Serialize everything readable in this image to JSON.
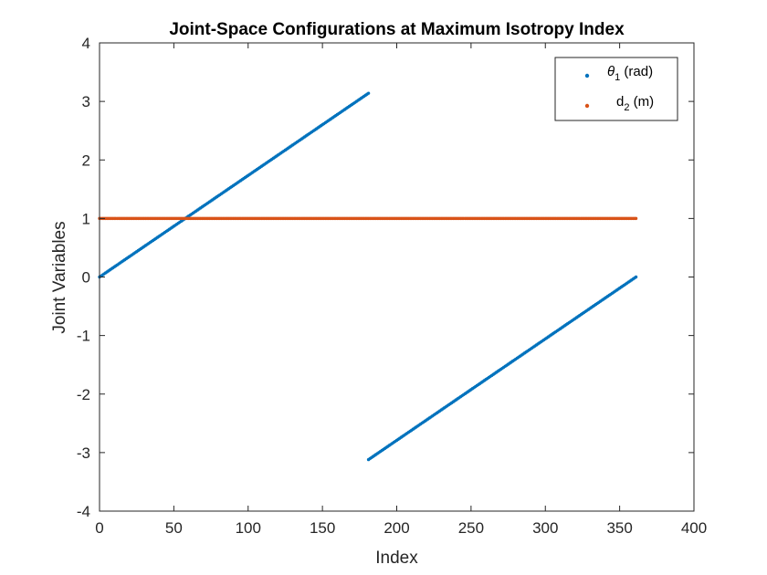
{
  "chart_data": {
    "type": "scatter",
    "title": "Joint-Space Configurations at Maximum Isotropy Index",
    "xlabel": "Index",
    "ylabel": "Joint Variables",
    "xlim": [
      0,
      400
    ],
    "ylim": [
      -4,
      4
    ],
    "xticks": [
      "0",
      "50",
      "100",
      "150",
      "200",
      "250",
      "300",
      "350",
      "400"
    ],
    "yticks": [
      "-4",
      "-3",
      "-2",
      "-1",
      "0",
      "1",
      "2",
      "3",
      "4"
    ],
    "grid": false,
    "legend_position": "top-right",
    "legend": {
      "theta_symbol": "θ",
      "theta_sub": "1",
      "theta_unit": " (rad)",
      "d_symbol": "d",
      "d_sub": "2",
      "d_unit": " (m)"
    },
    "series": [
      {
        "name": "θ1 (rad)",
        "color": "#0072BD",
        "segments": [
          {
            "x": [
              0,
              181
            ],
            "y": [
              0,
              3.14
            ]
          },
          {
            "x": [
              181,
              361
            ],
            "y": [
              -3.12,
              0
            ]
          }
        ]
      },
      {
        "name": "d2 (m)",
        "color": "#D95319",
        "segments": [
          {
            "x": [
              0,
              361
            ],
            "y": [
              1,
              1
            ]
          }
        ]
      }
    ]
  }
}
